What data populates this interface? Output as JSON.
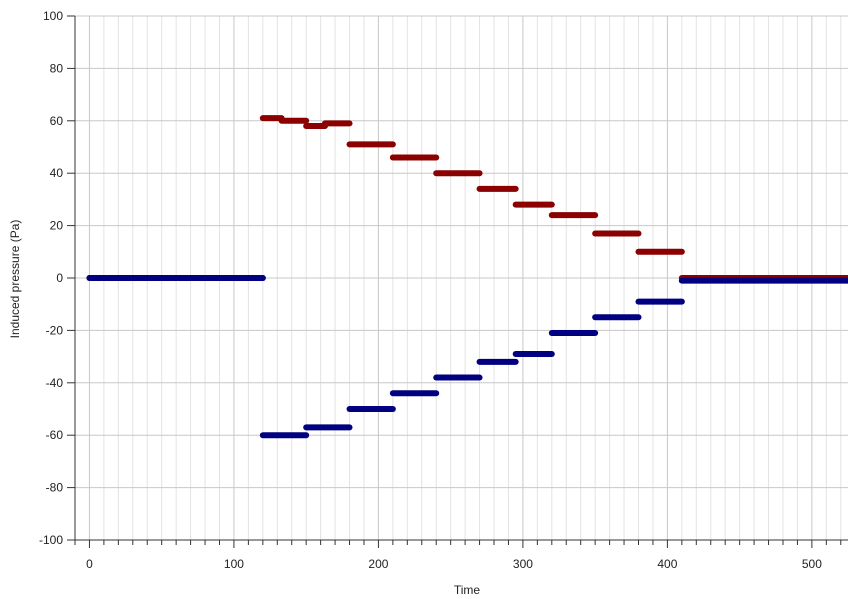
{
  "chart_data": {
    "type": "scatter",
    "title": "",
    "xlabel": "Time",
    "ylabel": "Induced pressure (Pa)",
    "xlim": [
      -10,
      525
    ],
    "ylim": [
      -100,
      100
    ],
    "x_ticks": [
      0,
      100,
      200,
      300,
      400,
      500
    ],
    "y_ticks": [
      -100,
      -80,
      -60,
      -40,
      -20,
      0,
      20,
      40,
      60,
      80,
      100
    ],
    "x_minor_step": 10,
    "grid": true,
    "legend": "none",
    "series": [
      {
        "color": "#8b0000",
        "segments": [
          {
            "x_start": 0,
            "x_end": 120,
            "y": 0
          },
          {
            "x_start": 120,
            "x_end": 133,
            "y": 61
          },
          {
            "x_start": 133,
            "x_end": 150,
            "y": 60
          },
          {
            "x_start": 150,
            "x_end": 163,
            "y": 58
          },
          {
            "x_start": 163,
            "x_end": 180,
            "y": 59
          },
          {
            "x_start": 180,
            "x_end": 210,
            "y": 51
          },
          {
            "x_start": 210,
            "x_end": 240,
            "y": 46
          },
          {
            "x_start": 240,
            "x_end": 270,
            "y": 40
          },
          {
            "x_start": 270,
            "x_end": 295,
            "y": 34
          },
          {
            "x_start": 295,
            "x_end": 320,
            "y": 28
          },
          {
            "x_start": 320,
            "x_end": 350,
            "y": 24
          },
          {
            "x_start": 350,
            "x_end": 380,
            "y": 17
          },
          {
            "x_start": 380,
            "x_end": 410,
            "y": 10
          },
          {
            "x_start": 410,
            "x_end": 525,
            "y": 0
          }
        ]
      },
      {
        "color": "#000080",
        "segments": [
          {
            "x_start": 0,
            "x_end": 120,
            "y": 0
          },
          {
            "x_start": 120,
            "x_end": 150,
            "y": -60
          },
          {
            "x_start": 150,
            "x_end": 180,
            "y": -57
          },
          {
            "x_start": 180,
            "x_end": 210,
            "y": -50
          },
          {
            "x_start": 210,
            "x_end": 240,
            "y": -44
          },
          {
            "x_start": 240,
            "x_end": 270,
            "y": -38
          },
          {
            "x_start": 270,
            "x_end": 295,
            "y": -32
          },
          {
            "x_start": 295,
            "x_end": 320,
            "y": -29
          },
          {
            "x_start": 320,
            "x_end": 350,
            "y": -21
          },
          {
            "x_start": 350,
            "x_end": 380,
            "y": -15
          },
          {
            "x_start": 380,
            "x_end": 410,
            "y": -9
          },
          {
            "x_start": 410,
            "x_end": 525,
            "y": -1
          }
        ]
      }
    ]
  }
}
